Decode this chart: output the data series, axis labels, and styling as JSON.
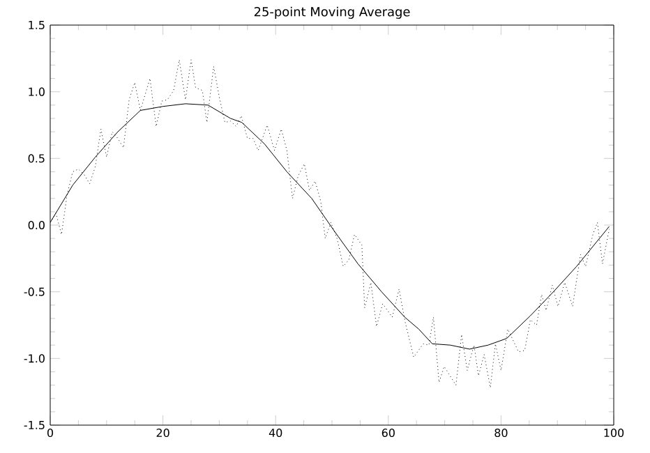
{
  "chart_data": {
    "type": "line",
    "title": "25-point Moving Average",
    "series": [
      {
        "color": "#000000",
        "line_style": "dotted",
        "x": [
          0,
          1,
          2,
          3,
          4,
          5,
          6,
          7,
          8,
          9,
          10,
          11,
          12,
          13,
          14,
          15,
          16,
          17.7,
          18.8,
          19.8,
          20.8,
          21.9,
          22.9,
          24,
          25,
          25.8,
          27,
          27.8,
          29,
          30,
          31,
          32,
          33,
          33.9,
          35,
          36,
          36.9,
          38.5,
          39.8,
          41,
          42,
          43,
          44,
          45.1,
          46,
          47,
          48,
          48.8,
          49.8,
          50.9,
          52,
          53,
          54,
          55.3,
          55.8,
          56.9,
          57.9,
          59,
          60.7,
          61.9,
          63,
          64.5,
          66.2,
          67.2,
          68,
          69,
          69.9,
          72,
          73,
          74,
          75.2,
          76,
          77,
          78.1,
          79,
          80,
          81.2,
          83.1,
          84.2,
          85.2,
          86.3,
          87.2,
          88,
          89.1,
          90.1,
          91.3,
          92.7,
          94.1,
          95,
          96.3,
          97.1,
          98,
          99.2
        ],
        "values": [
          0.02,
          0.09,
          -0.07,
          0.23,
          0.4,
          0.42,
          0.38,
          0.31,
          0.44,
          0.72,
          0.51,
          0.7,
          0.65,
          0.58,
          0.94,
          1.07,
          0.86,
          1.1,
          0.74,
          0.93,
          0.94,
          1.01,
          1.24,
          0.94,
          1.24,
          1.03,
          1.01,
          0.77,
          1.19,
          0.96,
          0.77,
          0.78,
          0.74,
          0.82,
          0.65,
          0.65,
          0.56,
          0.75,
          0.56,
          0.72,
          0.56,
          0.2,
          0.37,
          0.46,
          0.26,
          0.33,
          0.18,
          -0.1,
          0.02,
          -0.1,
          -0.31,
          -0.26,
          -0.07,
          -0.15,
          -0.62,
          -0.43,
          -0.76,
          -0.59,
          -0.69,
          -0.48,
          -0.73,
          -0.99,
          -0.89,
          -0.9,
          -0.69,
          -1.18,
          -1.06,
          -1.2,
          -0.82,
          -1.09,
          -0.9,
          -1.13,
          -0.97,
          -1.22,
          -0.89,
          -1.09,
          -0.78,
          -0.95,
          -0.94,
          -0.71,
          -0.75,
          -0.52,
          -0.64,
          -0.45,
          -0.61,
          -0.43,
          -0.61,
          -0.22,
          -0.31,
          -0.07,
          0.02,
          -0.29,
          -0.03
        ]
      },
      {
        "color": "#000000",
        "line_style": "solid",
        "x": [
          0,
          4,
          8,
          12,
          16,
          20,
          24,
          28,
          32,
          34,
          38,
          42,
          46.4,
          50.5,
          54.6,
          58.8,
          62.9,
          65.4,
          67.8,
          71,
          74.4,
          77.7,
          81,
          85.2,
          89.3,
          93.4,
          99.2
        ],
        "values": [
          0.02,
          0.3,
          0.51,
          0.7,
          0.86,
          0.89,
          0.91,
          0.9,
          0.8,
          0.77,
          0.61,
          0.4,
          0.2,
          -0.05,
          -0.29,
          -0.5,
          -0.69,
          -0.78,
          -0.89,
          -0.9,
          -0.93,
          -0.9,
          -0.85,
          -0.68,
          -0.5,
          -0.31,
          -0.01
        ]
      }
    ],
    "xlim": [
      0,
      100
    ],
    "xticks": [
      0,
      20,
      40,
      60,
      80,
      100
    ],
    "ylim": [
      -1.5,
      1.5
    ],
    "yticks": [
      {
        "value": -1.5,
        "label": "-1.5"
      },
      {
        "value": -1.0,
        "label": "-1.0"
      },
      {
        "value": -0.5,
        "label": "-0.5"
      },
      {
        "value": 0,
        "label": "0.0"
      },
      {
        "value": 0.5,
        "label": "0.5"
      },
      {
        "value": 1.0,
        "label": "1.0"
      },
      {
        "value": 1.5,
        "label": "1.5"
      }
    ],
    "grid": false,
    "marker": "none"
  }
}
